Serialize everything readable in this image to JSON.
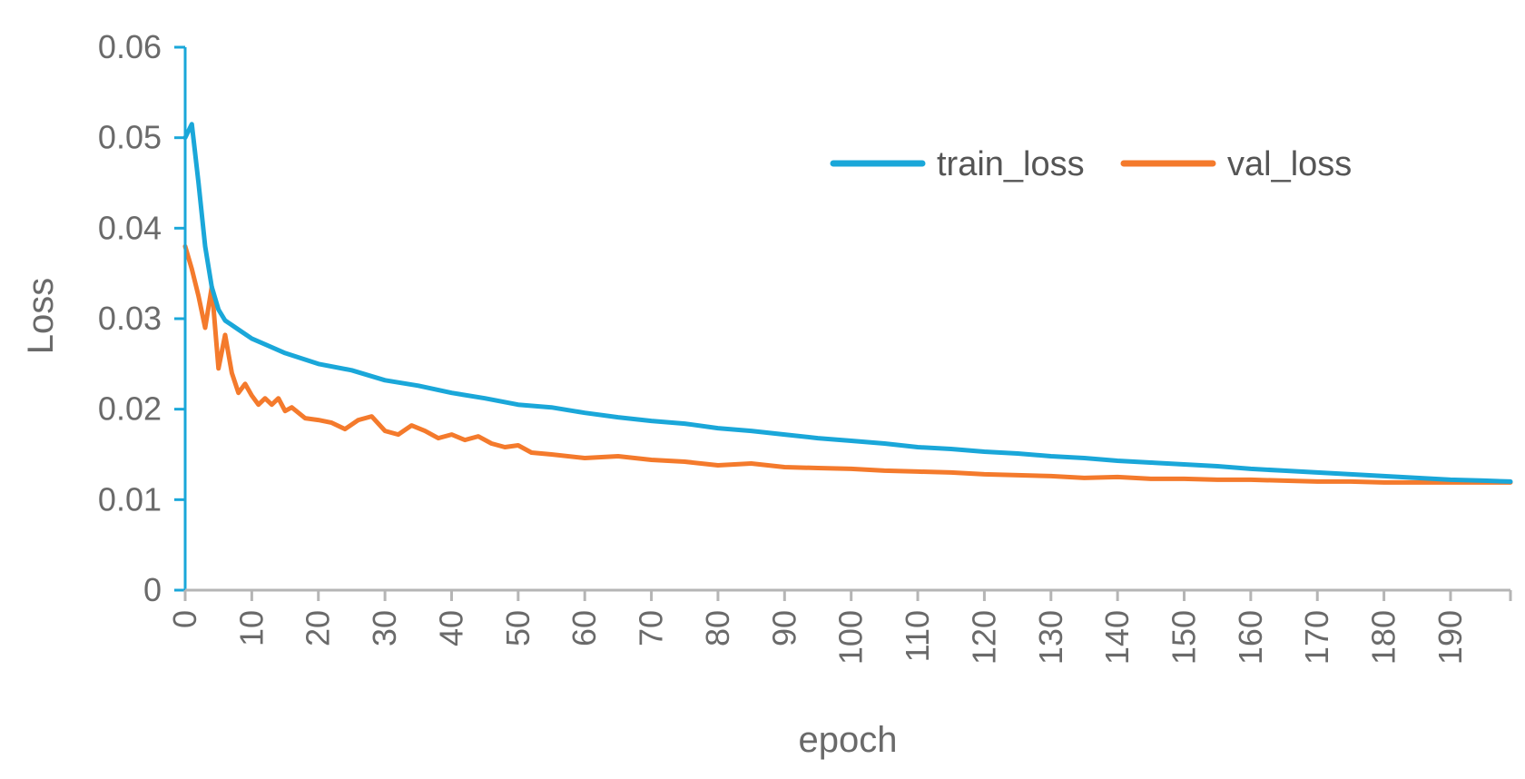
{
  "chart_data": {
    "type": "line",
    "title": "",
    "xlabel": "epoch",
    "ylabel": "Loss",
    "xlim": [
      0,
      199
    ],
    "ylim": [
      0,
      0.06
    ],
    "x_ticks": [
      0,
      10,
      20,
      30,
      40,
      50,
      60,
      70,
      80,
      90,
      100,
      110,
      120,
      130,
      140,
      150,
      160,
      170,
      180,
      190
    ],
    "x_tick_labels": [
      "0",
      "10",
      "20",
      "30",
      "40",
      "50",
      "60",
      "70",
      "80",
      "90",
      "100",
      "110",
      "120",
      "130",
      "140",
      "150",
      "160",
      "170",
      "180",
      "190"
    ],
    "y_ticks": [
      0,
      0.01,
      0.02,
      0.03,
      0.04,
      0.05,
      0.06
    ],
    "y_tick_labels": [
      "0",
      "0.01",
      "0.02",
      "0.03",
      "0.04",
      "0.05",
      "0.06"
    ],
    "grid": false,
    "legend_position": "top-right",
    "series": [
      {
        "name": "train_loss",
        "color": "#1aa7d9",
        "points": [
          [
            0,
            0.05
          ],
          [
            1,
            0.0515
          ],
          [
            2,
            0.045
          ],
          [
            3,
            0.038
          ],
          [
            4,
            0.0335
          ],
          [
            5,
            0.031
          ],
          [
            6,
            0.0298
          ],
          [
            8,
            0.0288
          ],
          [
            10,
            0.0278
          ],
          [
            15,
            0.0262
          ],
          [
            20,
            0.025
          ],
          [
            25,
            0.0243
          ],
          [
            30,
            0.0232
          ],
          [
            35,
            0.0226
          ],
          [
            40,
            0.0218
          ],
          [
            45,
            0.0212
          ],
          [
            50,
            0.0205
          ],
          [
            55,
            0.0202
          ],
          [
            60,
            0.0196
          ],
          [
            65,
            0.0191
          ],
          [
            70,
            0.0187
          ],
          [
            75,
            0.0184
          ],
          [
            80,
            0.0179
          ],
          [
            85,
            0.0176
          ],
          [
            90,
            0.0172
          ],
          [
            95,
            0.0168
          ],
          [
            100,
            0.0165
          ],
          [
            105,
            0.0162
          ],
          [
            110,
            0.0158
          ],
          [
            115,
            0.0156
          ],
          [
            120,
            0.0153
          ],
          [
            125,
            0.0151
          ],
          [
            130,
            0.0148
          ],
          [
            135,
            0.0146
          ],
          [
            140,
            0.0143
          ],
          [
            145,
            0.0141
          ],
          [
            150,
            0.0139
          ],
          [
            155,
            0.0137
          ],
          [
            160,
            0.0134
          ],
          [
            165,
            0.0132
          ],
          [
            170,
            0.013
          ],
          [
            175,
            0.0128
          ],
          [
            180,
            0.0126
          ],
          [
            185,
            0.0124
          ],
          [
            190,
            0.0122
          ],
          [
            195,
            0.0121
          ],
          [
            199,
            0.012
          ]
        ]
      },
      {
        "name": "val_loss",
        "color": "#f47a2c",
        "points": [
          [
            0,
            0.038
          ],
          [
            1,
            0.0355
          ],
          [
            2,
            0.0325
          ],
          [
            3,
            0.029
          ],
          [
            4,
            0.0335
          ],
          [
            5,
            0.0245
          ],
          [
            6,
            0.0282
          ],
          [
            7,
            0.024
          ],
          [
            8,
            0.0218
          ],
          [
            9,
            0.0228
          ],
          [
            10,
            0.0215
          ],
          [
            11,
            0.0205
          ],
          [
            12,
            0.0212
          ],
          [
            13,
            0.0205
          ],
          [
            14,
            0.0212
          ],
          [
            15,
            0.0198
          ],
          [
            16,
            0.0202
          ],
          [
            18,
            0.019
          ],
          [
            20,
            0.0188
          ],
          [
            22,
            0.0185
          ],
          [
            24,
            0.0178
          ],
          [
            26,
            0.0188
          ],
          [
            28,
            0.0192
          ],
          [
            30,
            0.0176
          ],
          [
            32,
            0.0172
          ],
          [
            34,
            0.0182
          ],
          [
            36,
            0.0176
          ],
          [
            38,
            0.0168
          ],
          [
            40,
            0.0172
          ],
          [
            42,
            0.0166
          ],
          [
            44,
            0.017
          ],
          [
            46,
            0.0162
          ],
          [
            48,
            0.0158
          ],
          [
            50,
            0.016
          ],
          [
            52,
            0.0152
          ],
          [
            55,
            0.015
          ],
          [
            60,
            0.0146
          ],
          [
            65,
            0.0148
          ],
          [
            70,
            0.0144
          ],
          [
            75,
            0.0142
          ],
          [
            80,
            0.0138
          ],
          [
            85,
            0.014
          ],
          [
            90,
            0.0136
          ],
          [
            95,
            0.0135
          ],
          [
            100,
            0.0134
          ],
          [
            105,
            0.0132
          ],
          [
            110,
            0.0131
          ],
          [
            115,
            0.013
          ],
          [
            120,
            0.0128
          ],
          [
            125,
            0.0127
          ],
          [
            130,
            0.0126
          ],
          [
            135,
            0.0124
          ],
          [
            140,
            0.0125
          ],
          [
            145,
            0.0123
          ],
          [
            150,
            0.0123
          ],
          [
            155,
            0.0122
          ],
          [
            160,
            0.0122
          ],
          [
            165,
            0.0121
          ],
          [
            170,
            0.012
          ],
          [
            175,
            0.012
          ],
          [
            180,
            0.0119
          ],
          [
            185,
            0.0119
          ],
          [
            190,
            0.0119
          ],
          [
            195,
            0.0119
          ],
          [
            199,
            0.0119
          ]
        ]
      }
    ]
  }
}
